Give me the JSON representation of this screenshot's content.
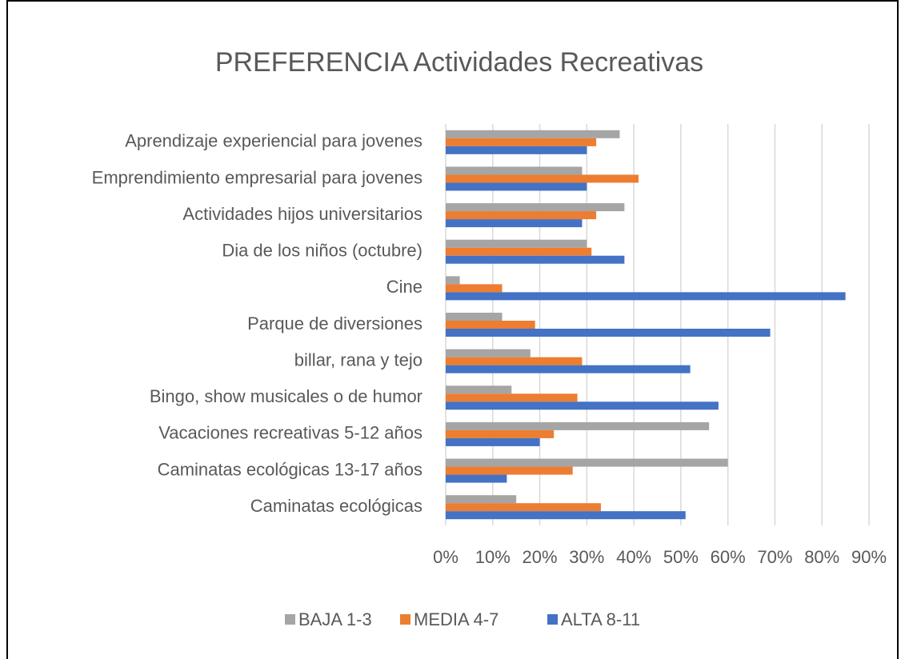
{
  "chart_data": {
    "type": "bar",
    "orientation": "horizontal",
    "title": "PREFERENCIA Actividades Recreativas",
    "categories": [
      "Aprendizaje experiencial para jovenes",
      "Emprendimiento empresarial para jovenes",
      "Actividades hijos universitarios",
      "Dia de los niños (octubre)",
      "Cine",
      "Parque de diversiones",
      "billar, rana y tejo",
      "Bingo, show musicales o de humor",
      "Vacaciones recreativas 5-12 años",
      "Caminatas ecológicas 13-17 años",
      "Caminatas ecológicas"
    ],
    "series": [
      {
        "name": "BAJA 1-3",
        "color": "#a5a5a5",
        "values": [
          37,
          29,
          38,
          30,
          3,
          12,
          18,
          14,
          56,
          60,
          15
        ]
      },
      {
        "name": "MEDIA 4-7",
        "color": "#ed7d31",
        "values": [
          32,
          41,
          32,
          31,
          12,
          19,
          29,
          28,
          23,
          27,
          33
        ]
      },
      {
        "name": "ALTA 8-11",
        "color": "#4472c4",
        "values": [
          30,
          30,
          29,
          38,
          85,
          69,
          52,
          58,
          20,
          13,
          51
        ]
      }
    ],
    "xlim": [
      0,
      90
    ],
    "xticks": [
      {
        "value": 0,
        "label": "0%"
      },
      {
        "value": 10,
        "label": "10%"
      },
      {
        "value": 20,
        "label": "20%"
      },
      {
        "value": 30,
        "label": "30%"
      },
      {
        "value": 40,
        "label": "40%"
      },
      {
        "value": 50,
        "label": "50%"
      },
      {
        "value": 60,
        "label": "60%"
      },
      {
        "value": 70,
        "label": "70%"
      },
      {
        "value": 80,
        "label": "80%"
      },
      {
        "value": 90,
        "label": "90%"
      }
    ],
    "grid": true,
    "legend": "bottom"
  }
}
